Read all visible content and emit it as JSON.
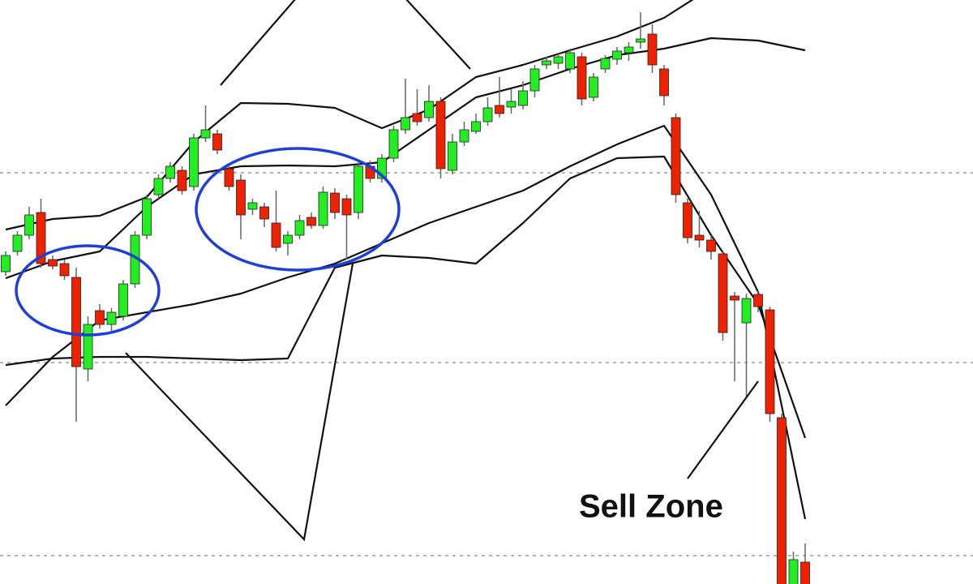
{
  "chart_data": {
    "type": "candlestick",
    "annotation": "Sell Zone",
    "ylim": [
      0,
      720
    ],
    "up_color": "#22ee22",
    "down_color": "#ee2200",
    "wick_color": "#666666",
    "band_color": "#111111",
    "open": [
      385,
      410,
      430,
      458,
      400,
      395,
      378,
      265,
      337,
      320,
      330,
      370,
      430,
      480,
      500,
      510,
      490,
      550,
      555,
      512,
      498,
      462,
      465,
      445,
      420,
      430,
      452,
      442,
      482,
      475,
      458,
      515,
      500,
      525,
      560,
      580,
      575,
      595,
      510,
      545,
      558,
      570,
      590,
      588,
      590,
      608,
      640,
      642,
      635,
      650,
      600,
      635,
      647,
      655,
      668,
      678,
      635,
      575,
      470,
      430,
      424,
      407,
      355,
      322,
      357,
      338,
      205,
      -10,
      27
    ],
    "high": [
      410,
      435,
      465,
      475,
      405,
      400,
      390,
      330,
      345,
      340,
      375,
      435,
      480,
      505,
      520,
      515,
      555,
      590,
      560,
      515,
      505,
      475,
      470,
      485,
      435,
      455,
      458,
      490,
      488,
      480,
      520,
      522,
      530,
      565,
      623,
      610,
      615,
      600,
      555,
      570,
      580,
      600,
      625,
      610,
      620,
      640,
      650,
      655,
      660,
      655,
      630,
      652,
      662,
      668,
      705,
      690,
      640,
      580,
      475,
      460,
      430,
      410,
      360,
      358,
      362,
      342,
      210,
      40,
      50
    ],
    "low": [
      380,
      405,
      425,
      390,
      388,
      375,
      200,
      250,
      315,
      312,
      325,
      365,
      425,
      475,
      495,
      480,
      485,
      545,
      530,
      485,
      425,
      455,
      440,
      410,
      405,
      425,
      438,
      438,
      450,
      400,
      450,
      495,
      495,
      520,
      555,
      565,
      570,
      500,
      505,
      540,
      555,
      565,
      575,
      580,
      585,
      600,
      635,
      635,
      630,
      590,
      595,
      630,
      640,
      645,
      660,
      630,
      590,
      470,
      420,
      415,
      400,
      300,
      250,
      230,
      335,
      200,
      -30,
      -20,
      -20
    ],
    "close": [
      405,
      430,
      455,
      395,
      392,
      380,
      268,
      320,
      320,
      335,
      370,
      430,
      475,
      500,
      515,
      485,
      550,
      560,
      535,
      490,
      455,
      470,
      450,
      415,
      430,
      448,
      442,
      483,
      458,
      455,
      515,
      500,
      525,
      560,
      575,
      570,
      595,
      512,
      545,
      560,
      570,
      587,
      580,
      595,
      608,
      635,
      645,
      650,
      655,
      598,
      625,
      648,
      657,
      662,
      672,
      640,
      602,
      480,
      427,
      424,
      410,
      310,
      350,
      352,
      342,
      210,
      -20,
      30,
      -10
    ],
    "bands": [
      {
        "index": [
          0,
          4,
          8,
          12,
          16,
          20,
          24,
          28,
          32,
          36,
          40,
          44,
          48,
          52,
          56,
          60,
          64,
          68
        ],
        "values": [
          437,
          450,
          454,
          477,
          545,
          593,
          592,
          587,
          562,
          585,
          625,
          640,
          658,
          675,
          698,
          735,
          null,
          null
        ]
      },
      {
        "index": [
          0,
          4,
          8,
          12,
          16,
          20,
          24,
          28,
          32,
          36,
          40,
          44,
          48,
          52,
          56,
          60,
          64,
          68
        ],
        "values": [
          377,
          398,
          410,
          465,
          505,
          515,
          516,
          515,
          520,
          560,
          600,
          615,
          635,
          652,
          660,
          673,
          670,
          658
        ]
      },
      {
        "index": [
          0,
          4,
          8,
          12,
          16,
          20,
          24,
          28,
          32,
          36,
          40,
          44,
          48,
          52,
          56,
          60,
          64,
          68
        ],
        "values": [
          270,
          278,
          280,
          280,
          278,
          276,
          278,
          390,
          405,
          402,
          395,
          445,
          500,
          525,
          527,
          430,
          345,
          180
        ]
      },
      {
        "index": [
          0,
          4,
          8,
          12,
          16,
          20,
          24,
          28,
          32,
          36,
          40,
          44,
          48,
          52,
          56,
          60,
          64,
          68
        ],
        "values": [
          220,
          280,
          325,
          335,
          345,
          358,
          378,
          395,
          420,
          445,
          465,
          485,
          515,
          542,
          565,
          480,
          360,
          80
        ]
      }
    ]
  }
}
